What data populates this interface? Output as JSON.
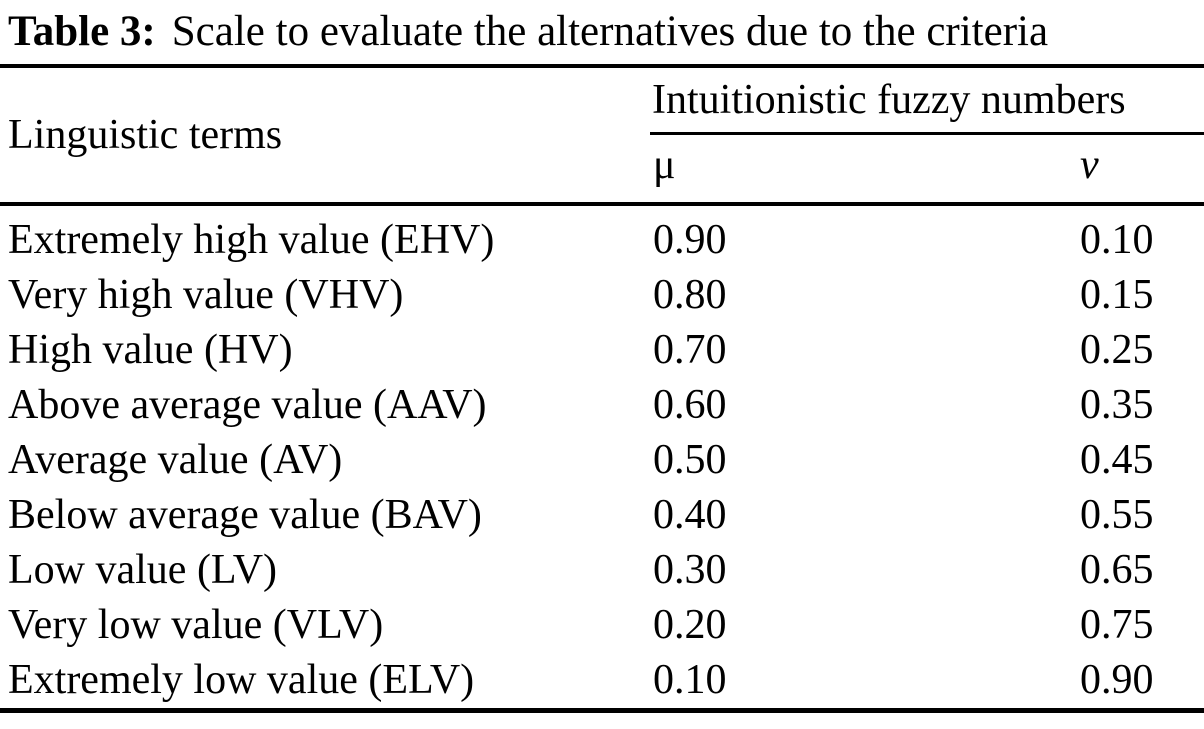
{
  "caption": {
    "label": "Table 3:",
    "text": "Scale to evaluate the alternatives due to the criteria"
  },
  "table": {
    "col1_header": "Linguistic terms",
    "group_header": "Intuitionistic fuzzy numbers",
    "sub_headers": {
      "mu": "μ",
      "nu": "ν"
    },
    "rows": [
      {
        "term": "Extremely high value (EHV)",
        "mu": "0.90",
        "nu": "0.10"
      },
      {
        "term": "Very high value (VHV)",
        "mu": "0.80",
        "nu": "0.15"
      },
      {
        "term": "High value (HV)",
        "mu": "0.70",
        "nu": "0.25"
      },
      {
        "term": "Above average value (AAV)",
        "mu": "0.60",
        "nu": "0.35"
      },
      {
        "term": "Average value (AV)",
        "mu": "0.50",
        "nu": "0.45"
      },
      {
        "term": "Below average value (BAV)",
        "mu": "0.40",
        "nu": "0.55"
      },
      {
        "term": "Low value (LV)",
        "mu": "0.30",
        "nu": "0.65"
      },
      {
        "term": "Very low value (VLV)",
        "mu": "0.20",
        "nu": "0.75"
      },
      {
        "term": "Extremely low value (ELV)",
        "mu": "0.10",
        "nu": "0.90"
      }
    ]
  },
  "colors": {
    "text": "#000000",
    "background": "#ffffff",
    "rule": "#000000"
  }
}
